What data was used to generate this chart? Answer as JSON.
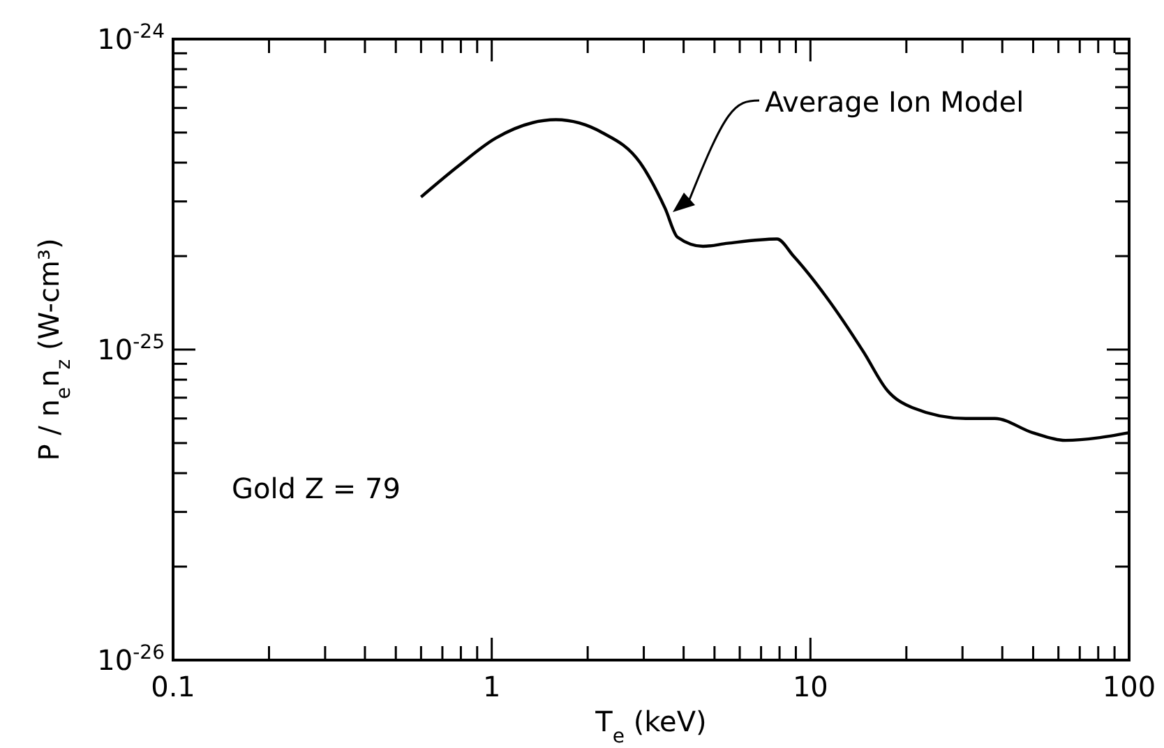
{
  "chart_data": {
    "type": "line",
    "xlabel": "T$_{e}$ (keV)",
    "ylabel": "P / n$_{e}$n$_{z}$ (W-cm³)",
    "log": "xy",
    "grid": false,
    "marker": "none",
    "line_style": "solid",
    "xlim": [
      0.1,
      100
    ],
    "ylim": [
      1e-26,
      1e-24
    ],
    "xticks": [
      {
        "value": 0.1,
        "label": "0.1"
      },
      {
        "value": 0.2,
        "label": null
      },
      {
        "value": 0.3,
        "label": null
      },
      {
        "value": 0.4,
        "label": null
      },
      {
        "value": 0.5,
        "label": null
      },
      {
        "value": 0.6,
        "label": null
      },
      {
        "value": 0.7,
        "label": null
      },
      {
        "value": 0.8,
        "label": null
      },
      {
        "value": 0.9,
        "label": null
      },
      {
        "value": 1,
        "label": "1"
      },
      {
        "value": 2,
        "label": null
      },
      {
        "value": 3,
        "label": null
      },
      {
        "value": 4,
        "label": null
      },
      {
        "value": 5,
        "label": null
      },
      {
        "value": 6,
        "label": null
      },
      {
        "value": 7,
        "label": null
      },
      {
        "value": 8,
        "label": null
      },
      {
        "value": 9,
        "label": null
      },
      {
        "value": 10,
        "label": "10"
      },
      {
        "value": 20,
        "label": null
      },
      {
        "value": 30,
        "label": null
      },
      {
        "value": 40,
        "label": null
      },
      {
        "value": 50,
        "label": null
      },
      {
        "value": 60,
        "label": null
      },
      {
        "value": 70,
        "label": null
      },
      {
        "value": 80,
        "label": null
      },
      {
        "value": 90,
        "label": null
      },
      {
        "value": 100,
        "label": "100"
      }
    ],
    "yticks": [
      {
        "value": 1e-26,
        "label": "10$^{-26}$"
      },
      {
        "value": 2e-26,
        "label": null
      },
      {
        "value": 3e-26,
        "label": null
      },
      {
        "value": 4e-26,
        "label": null
      },
      {
        "value": 5e-26,
        "label": null
      },
      {
        "value": 6e-26,
        "label": null
      },
      {
        "value": 7e-26,
        "label": null
      },
      {
        "value": 8e-26,
        "label": null
      },
      {
        "value": 9e-26,
        "label": null
      },
      {
        "value": 1e-25,
        "label": "10$^{-25}$"
      },
      {
        "value": 2e-25,
        "label": null
      },
      {
        "value": 3e-25,
        "label": null
      },
      {
        "value": 4e-25,
        "label": null
      },
      {
        "value": 5e-25,
        "label": null
      },
      {
        "value": 6e-25,
        "label": null
      },
      {
        "value": 7e-25,
        "label": null
      },
      {
        "value": 8e-25,
        "label": null
      },
      {
        "value": 9e-25,
        "label": null
      },
      {
        "value": 1e-24,
        "label": "10$^{-24}$"
      }
    ],
    "series": [
      {
        "color": "#000000",
        "x": [
          0.6,
          0.785,
          1.03,
          1.59,
          2.22,
          2.92,
          3.5,
          3.83,
          4.6,
          5.5,
          7.85,
          8.85,
          11.2,
          14.7,
          17.4,
          20.9,
          30.7,
          37.9,
          49.8,
          63,
          100
        ],
        "values": [
          3.1e-25,
          3.9e-25,
          4.8e-25,
          5.5e-25,
          5e-25,
          4e-25,
          2.85e-25,
          2.3e-25,
          2.15e-25,
          2.2e-25,
          2.27e-25,
          2e-25,
          1.48e-25,
          9.8e-26,
          7.4e-26,
          6.5e-26,
          6e-26,
          6e-26,
          5.4e-26,
          5.1e-26,
          5.4e-26
        ]
      }
    ],
    "annotations": [
      "Average Ion Model",
      "Gold Z = 79"
    ]
  }
}
